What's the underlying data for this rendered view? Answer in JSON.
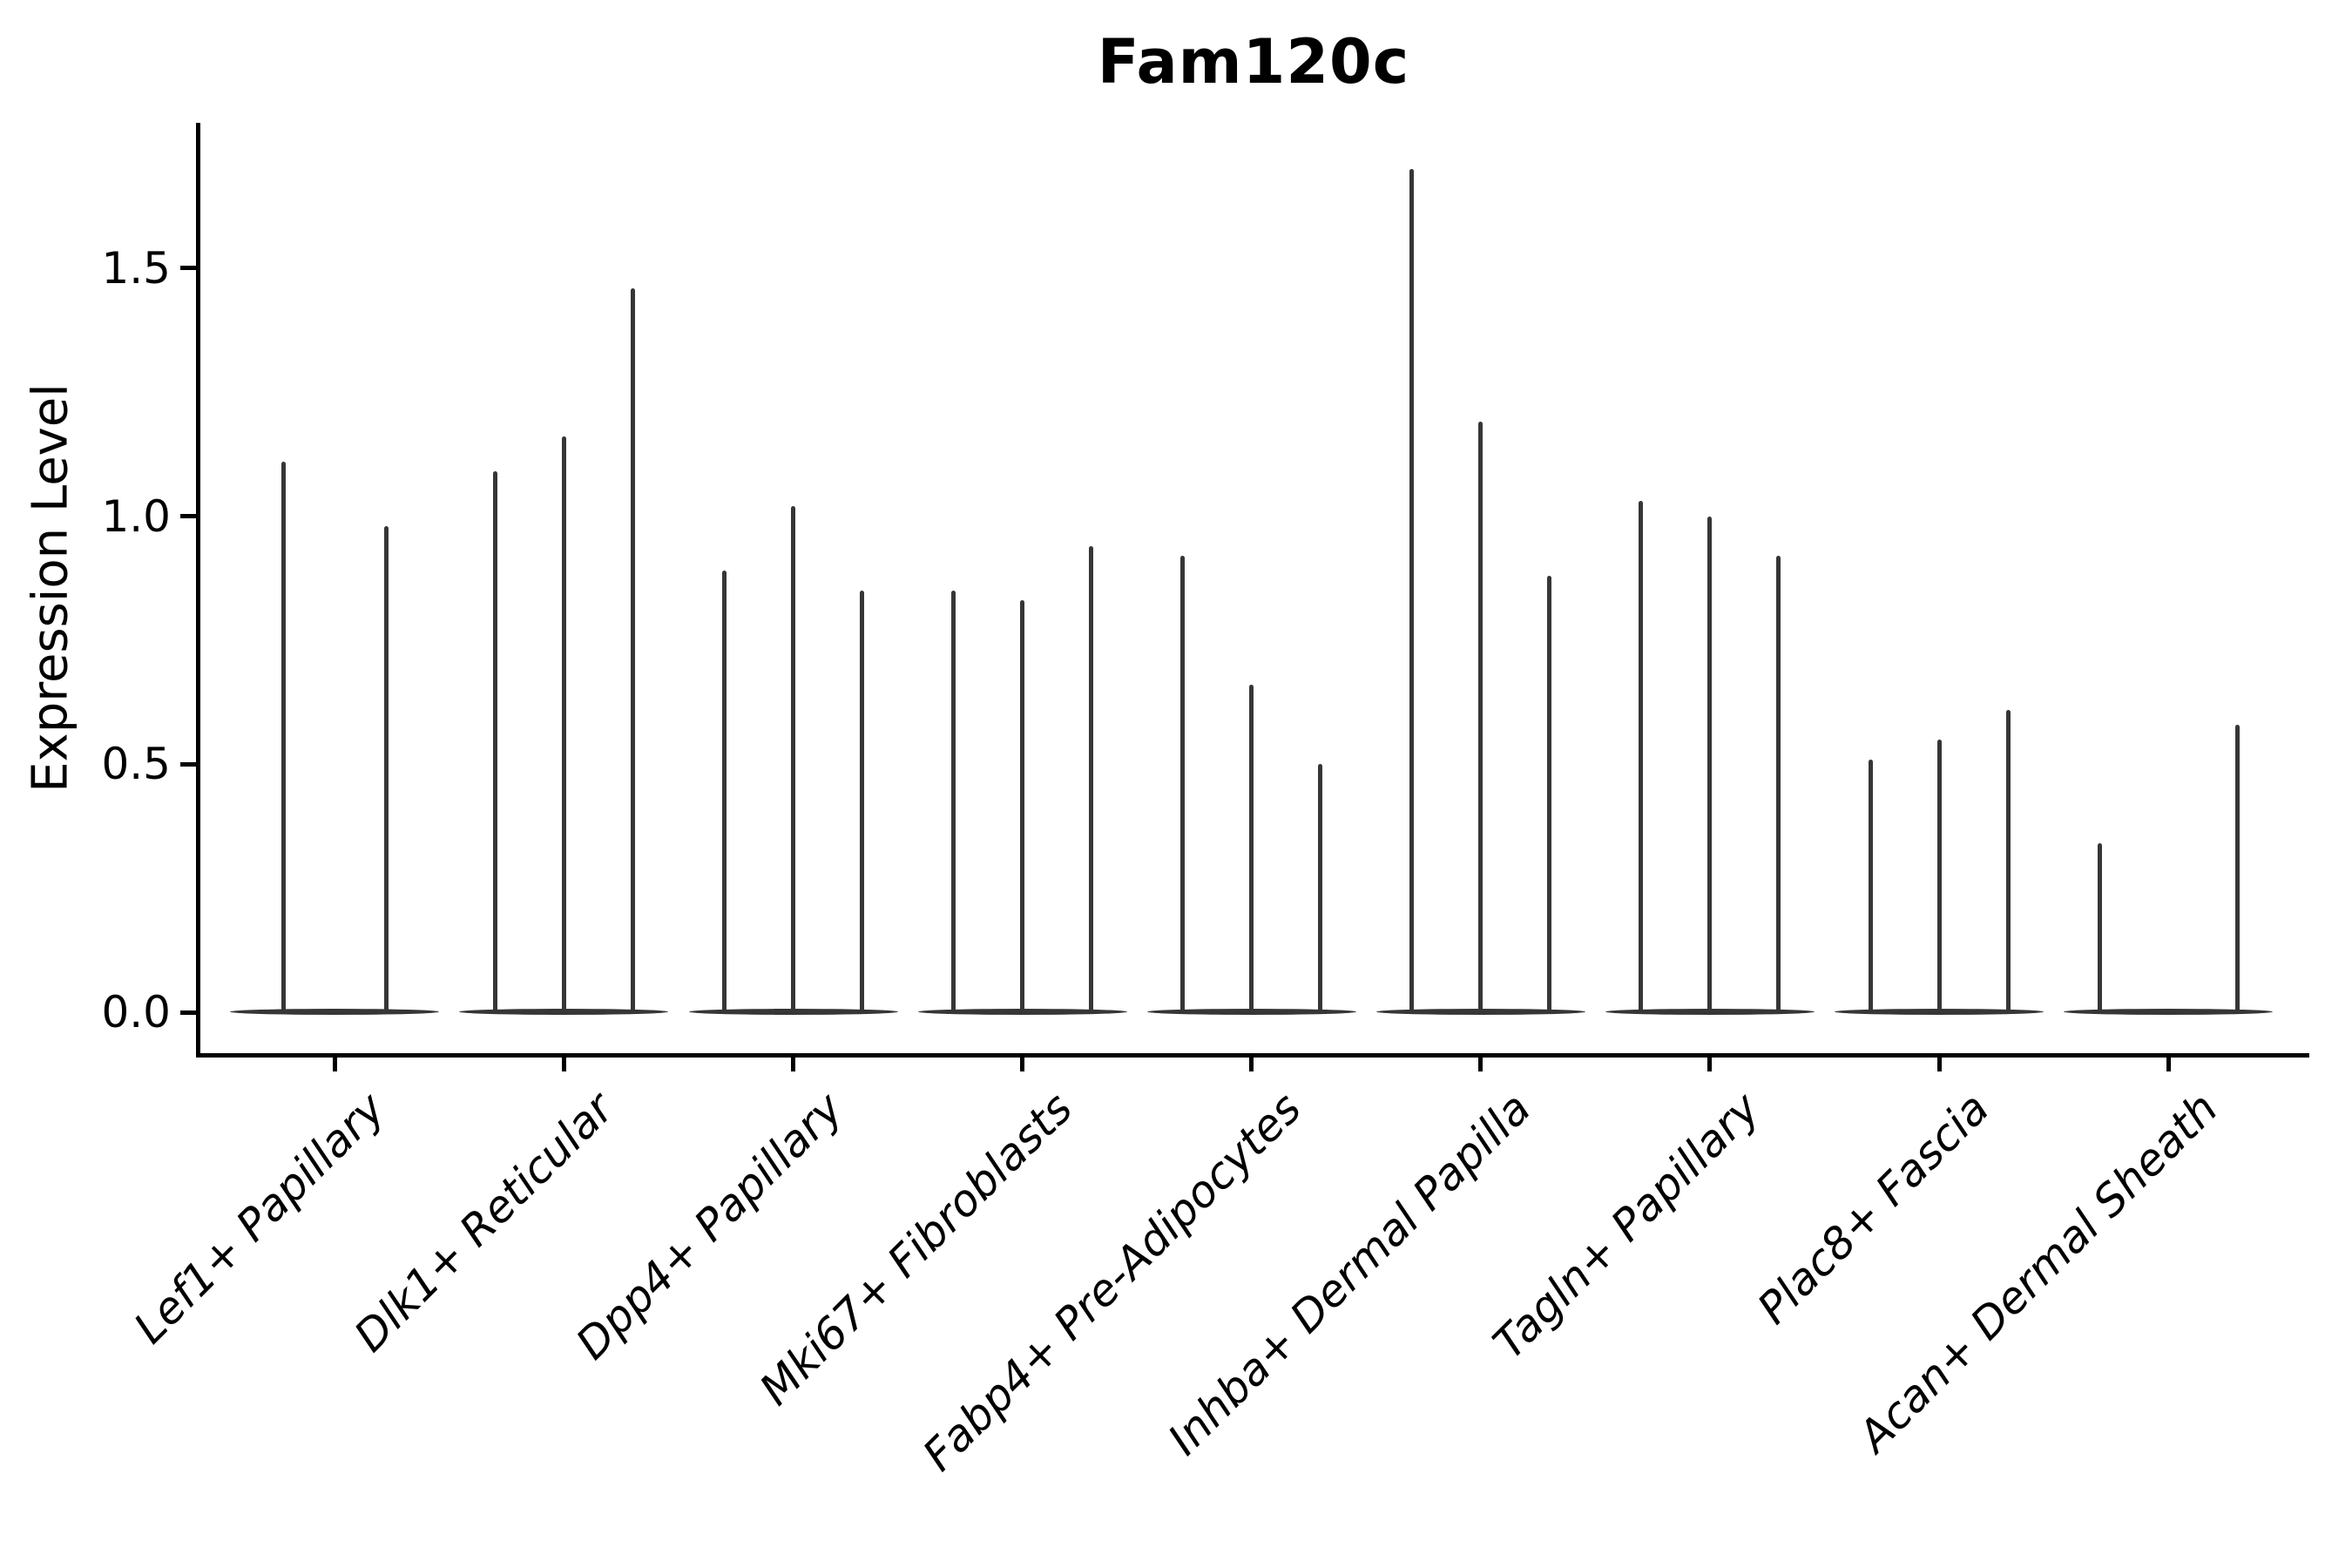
{
  "title": "Fam120c",
  "y_axis": {
    "label": "Expression Level",
    "tick_labels": [
      "0.0",
      "0.5",
      "1.0",
      "1.5"
    ],
    "tick_values": [
      0.0,
      0.5,
      1.0,
      1.5
    ]
  },
  "chart_data": {
    "type": "violin",
    "title": "Fam120c",
    "xlabel": "",
    "ylabel": "Expression Level",
    "ylim": [
      -0.09,
      1.79
    ],
    "yticks": [
      0.0,
      0.5,
      1.0,
      1.5
    ],
    "grid": false,
    "legend": "none",
    "description": "Thin violin plots of gene expression; each category shows 2-3 narrow spikes (violin peaks) rising from a flat dense base at expression 0.",
    "categories": [
      "Lef1+ Papillary",
      "Dlk1+ Reticular",
      "Dpp4+ Papillary",
      "Mki67+ Fibroblasts",
      "Fabp4+ Pre-Adipocytes",
      "Inhba+ Dermal Papilla",
      "Tagln+ Papillary",
      "Plac8+ Fascia",
      "Acan+ Dermal Sheath"
    ],
    "series": [
      {
        "category": "Lef1+ Papillary",
        "n_slots": 2,
        "violins": [
          {
            "slot": 1,
            "peak": 1.11
          },
          {
            "slot": 2,
            "peak": 0.98
          }
        ]
      },
      {
        "category": "Dlk1+ Reticular",
        "n_slots": 3,
        "violins": [
          {
            "slot": 1,
            "peak": 1.09
          },
          {
            "slot": 2,
            "peak": 1.16
          },
          {
            "slot": 3,
            "peak": 1.46
          }
        ]
      },
      {
        "category": "Dpp4+ Papillary",
        "n_slots": 3,
        "violins": [
          {
            "slot": 1,
            "peak": 0.89
          },
          {
            "slot": 2,
            "peak": 1.02
          },
          {
            "slot": 3,
            "peak": 0.85
          }
        ]
      },
      {
        "category": "Mki67+ Fibroblasts",
        "n_slots": 3,
        "violins": [
          {
            "slot": 1,
            "peak": 0.85
          },
          {
            "slot": 2,
            "peak": 0.83
          },
          {
            "slot": 3,
            "peak": 0.94
          }
        ]
      },
      {
        "category": "Fabp4+ Pre-Adipocytes",
        "n_slots": 3,
        "violins": [
          {
            "slot": 1,
            "peak": 0.92
          },
          {
            "slot": 2,
            "peak": 0.66
          },
          {
            "slot": 3,
            "peak": 0.5
          }
        ]
      },
      {
        "category": "Inhba+ Dermal Papilla",
        "n_slots": 3,
        "violins": [
          {
            "slot": 1,
            "peak": 1.7
          },
          {
            "slot": 2,
            "peak": 1.19
          },
          {
            "slot": 3,
            "peak": 0.88
          }
        ]
      },
      {
        "category": "Tagln+ Papillary",
        "n_slots": 3,
        "violins": [
          {
            "slot": 1,
            "peak": 1.03
          },
          {
            "slot": 2,
            "peak": 1.0
          },
          {
            "slot": 3,
            "peak": 0.92
          }
        ]
      },
      {
        "category": "Plac8+ Fascia",
        "n_slots": 3,
        "violins": [
          {
            "slot": 1,
            "peak": 0.51
          },
          {
            "slot": 2,
            "peak": 0.55
          },
          {
            "slot": 3,
            "peak": 0.61
          }
        ]
      },
      {
        "category": "Acan+ Dermal Sheath",
        "n_slots": 3,
        "violins": [
          {
            "slot": 1,
            "peak": 0.34
          },
          {
            "slot": 3,
            "peak": 0.58
          }
        ]
      }
    ],
    "colors": {
      "violin": "#363636",
      "axis": "#000000",
      "background": "#ffffff"
    }
  }
}
